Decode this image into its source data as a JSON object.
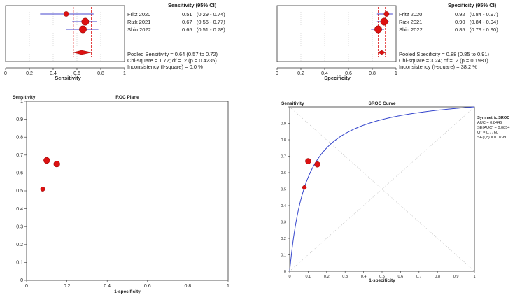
{
  "colors": {
    "marker": "#dd1111",
    "ci_line": "#4444cc",
    "pooled": "#dd1111",
    "curve": "#3344cc",
    "axis": "#333333",
    "grid": "#bbbbbb"
  },
  "forest_sens": {
    "header": "Sensitivity (95% CI)",
    "axis_label": "Sensitivity",
    "studies": [
      {
        "name": "Fritz 2020",
        "text": "0.51   (0.29 - 0.74)"
      },
      {
        "name": "Rizk 2021",
        "text": "0.67   (0.56 - 0.77)"
      },
      {
        "name": "Shin 2022",
        "text": "0.65   (0.51 - 0.78)"
      }
    ],
    "pooled_text": "Pooled Sensitivity = 0.64 (0.57 to 0.72)",
    "chi_text": "Chi-square = 1.72; df =  2 (p = 0.4235)",
    "incons_text": "Inconsistency (I-square) = 0.0 %"
  },
  "forest_spec": {
    "header": "Specificity (95% CI)",
    "axis_label": "Specificity",
    "studies": [
      {
        "name": "Fritz 2020",
        "text": "0.92   (0.84 - 0.97)"
      },
      {
        "name": "Rizk 2021",
        "text": "0.90   (0.84 - 0.94)"
      },
      {
        "name": "Shin 2022",
        "text": "0.85   (0.79 - 0.90)"
      }
    ],
    "pooled_text": "Pooled Specificity = 0.88 (0.85 to 0.91)",
    "chi_text": "Chi-square = 3.24; df =  2 (p = 0.1981)",
    "incons_text": "Inconsistency (I-square) = 38.2 %"
  },
  "roc": {
    "title": "ROC Plane",
    "ylabel": "Sensitivity",
    "xlabel": "1-specificity"
  },
  "sroc": {
    "title": "SROC Curve",
    "ylabel": "Sensitivity",
    "xlabel": "1-specificity",
    "legend_title": "Symmetric SROC",
    "legend_lines": [
      "AUC = 0.8446",
      "SE(AUC) = 0.0854",
      "Q* = 0.7760",
      "SE(Q*) = 0.0799"
    ]
  },
  "chart_data": [
    {
      "type": "forest",
      "title": "Sensitivity (95% CI)",
      "xlabel": "Sensitivity",
      "xlim": [
        0,
        1
      ],
      "ticks": [
        0,
        0.2,
        0.4,
        0.6,
        0.8,
        1
      ],
      "categories": [
        "Fritz 2020",
        "Rizk 2021",
        "Shin 2022"
      ],
      "values": [
        0.51,
        0.67,
        0.65
      ],
      "lower": [
        0.29,
        0.56,
        0.51
      ],
      "upper": [
        0.74,
        0.77,
        0.78
      ],
      "weights": [
        2,
        3,
        3
      ],
      "pooled": {
        "value": 0.64,
        "lower": 0.57,
        "upper": 0.72
      }
    },
    {
      "type": "forest",
      "title": "Specificity (95% CI)",
      "xlabel": "Specificity",
      "xlim": [
        0,
        1
      ],
      "ticks": [
        0,
        0.2,
        0.4,
        0.6,
        0.8,
        1
      ],
      "categories": [
        "Fritz 2020",
        "Rizk 2021",
        "Shin 2022"
      ],
      "values": [
        0.92,
        0.9,
        0.85
      ],
      "lower": [
        0.84,
        0.84,
        0.79
      ],
      "upper": [
        0.97,
        0.94,
        0.9
      ],
      "weights": [
        2,
        3,
        3
      ],
      "pooled": {
        "value": 0.88,
        "lower": 0.85,
        "upper": 0.91
      }
    },
    {
      "type": "scatter",
      "title": "ROC Plane",
      "xlabel": "1-specificity",
      "ylabel": "Sensitivity",
      "xlim": [
        0,
        1
      ],
      "ylim": [
        0,
        1
      ],
      "xticks": [
        0,
        0.2,
        0.4,
        0.6,
        0.8,
        1
      ],
      "yticks": [
        0,
        0.1,
        0.2,
        0.3,
        0.4,
        0.5,
        0.6,
        0.7,
        0.8,
        0.9,
        1
      ],
      "points": [
        {
          "x": 0.08,
          "y": 0.51
        },
        {
          "x": 0.1,
          "y": 0.67
        },
        {
          "x": 0.15,
          "y": 0.65
        }
      ],
      "sizes": [
        2,
        3,
        3
      ]
    },
    {
      "type": "line",
      "title": "SROC Curve",
      "xlabel": "1-specificity",
      "ylabel": "Sensitivity",
      "xlim": [
        0,
        1
      ],
      "ylim": [
        0,
        1
      ],
      "xticks": [
        0,
        0.1,
        0.2,
        0.3,
        0.4,
        0.5,
        0.6,
        0.7,
        0.8,
        0.9,
        1
      ],
      "yticks": [
        0,
        0.1,
        0.2,
        0.3,
        0.4,
        0.5,
        0.6,
        0.7,
        0.8,
        0.9,
        1
      ],
      "series": [
        {
          "name": "Symmetric SROC",
          "auc": 0.8446,
          "q_star": 0.776
        }
      ],
      "points": [
        {
          "x": 0.08,
          "y": 0.51
        },
        {
          "x": 0.1,
          "y": 0.67
        },
        {
          "x": 0.15,
          "y": 0.65
        }
      ],
      "sizes": [
        2,
        3,
        3
      ],
      "diagonals": true
    }
  ]
}
